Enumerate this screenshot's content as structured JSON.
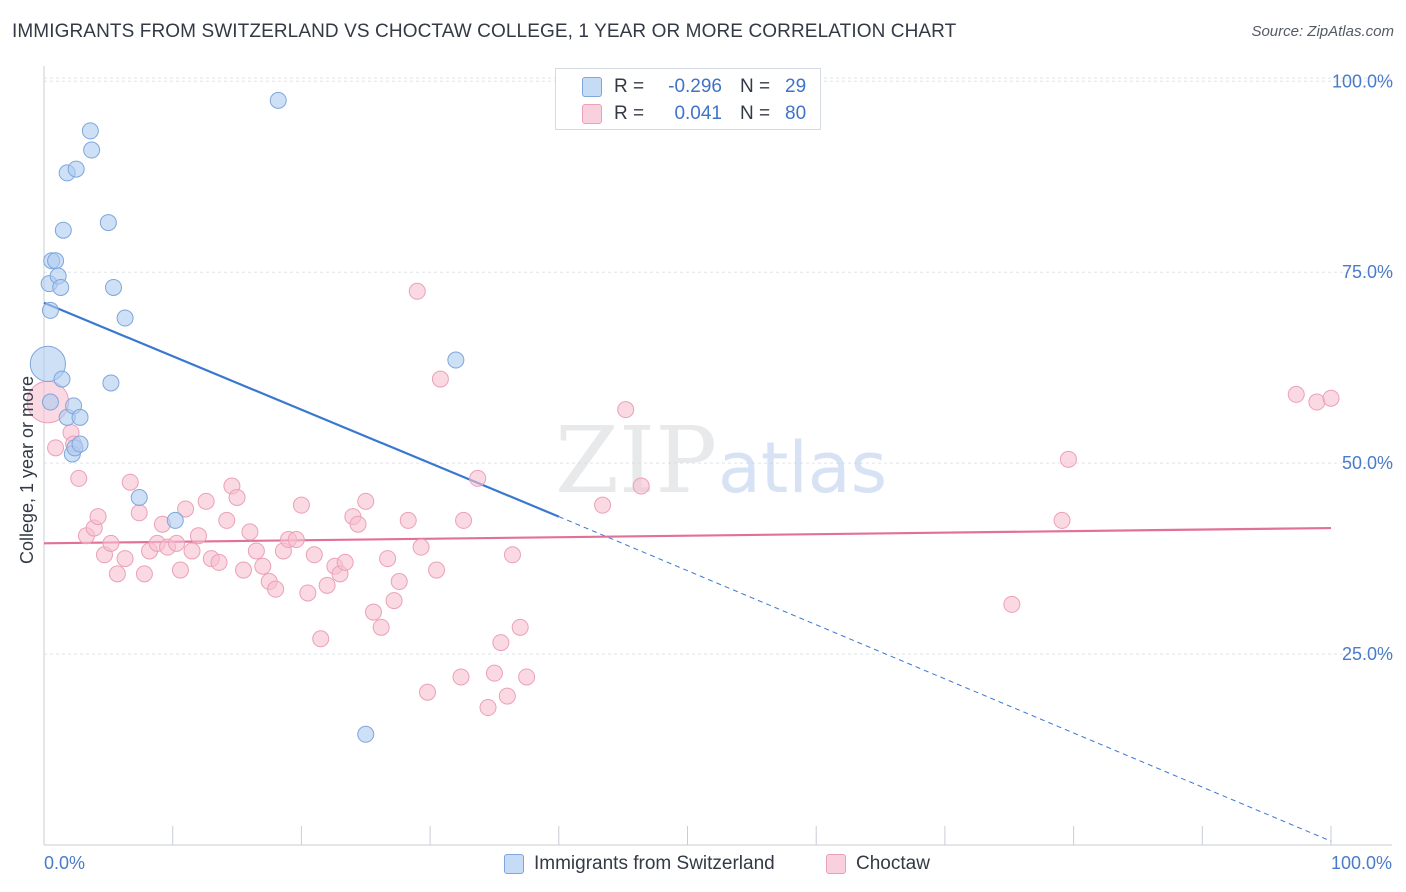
{
  "title": "IMMIGRANTS FROM SWITZERLAND VS CHOCTAW COLLEGE, 1 YEAR OR MORE CORRELATION CHART",
  "source": "Source: ZipAtlas.com",
  "watermark": {
    "part1": "ZIP",
    "part2": "atlas"
  },
  "colors": {
    "blue_fill": "#aecbf0",
    "blue_stroke": "#7ea6dc",
    "blue_line": "#3a78d0",
    "pink_fill": "#f6bfd0",
    "pink_stroke": "#eba0b9",
    "pink_line": "#e2719a",
    "axis_text": "#4a7bc8",
    "grid": "#dfe3ea"
  },
  "legend_stats": [
    {
      "r_label": "R =",
      "r_value": "-0.296",
      "n_label": "N =",
      "n_value": "29",
      "color": "blue"
    },
    {
      "r_label": "R =",
      "r_value": "0.041",
      "n_label": "N =",
      "n_value": "80",
      "color": "pink"
    }
  ],
  "bottom_legend": [
    "Immigrants from Switzerland",
    "Choctaw"
  ],
  "chart_data": {
    "type": "scatter",
    "title": "IMMIGRANTS FROM SWITZERLAND VS CHOCTAW COLLEGE, 1 YEAR OR MORE CORRELATION CHART",
    "xlabel": "",
    "ylabel": "College, 1 year or more",
    "xlim": [
      0,
      100
    ],
    "ylim": [
      0,
      102
    ],
    "x_tick_labels": [
      "0.0%",
      "100.0%"
    ],
    "y_ticks": [
      25,
      50,
      75,
      100
    ],
    "y_tick_labels": [
      "25.0%",
      "50.0%",
      "75.0%",
      "100.0%"
    ],
    "grid": true,
    "series": [
      {
        "name": "Immigrants from Switzerland",
        "color": "blue",
        "points": [
          [
            0.3,
            63.0,
            2.2
          ],
          [
            0.5,
            58.0,
            1
          ],
          [
            0.4,
            73.5,
            1
          ],
          [
            0.5,
            70.0,
            1
          ],
          [
            0.6,
            76.5,
            1
          ],
          [
            0.9,
            76.5,
            1
          ],
          [
            1.1,
            74.5,
            1
          ],
          [
            1.3,
            73.0,
            1
          ],
          [
            1.4,
            61.0,
            1
          ],
          [
            1.5,
            80.5,
            1
          ],
          [
            1.8,
            88.0,
            1
          ],
          [
            1.8,
            56.0,
            1
          ],
          [
            2.2,
            51.2,
            1
          ],
          [
            2.3,
            57.5,
            1
          ],
          [
            2.4,
            52.0,
            1
          ],
          [
            2.5,
            88.5,
            1
          ],
          [
            2.8,
            56.0,
            1
          ],
          [
            2.8,
            52.5,
            1
          ],
          [
            3.6,
            93.5,
            1
          ],
          [
            3.7,
            91.0,
            1
          ],
          [
            5.0,
            81.5,
            1
          ],
          [
            5.2,
            60.5,
            1
          ],
          [
            5.4,
            73.0,
            1
          ],
          [
            6.3,
            69.0,
            1
          ],
          [
            7.4,
            45.5,
            1
          ],
          [
            10.2,
            42.5,
            1
          ],
          [
            18.2,
            97.5,
            1
          ],
          [
            25.0,
            14.5,
            1
          ],
          [
            32.0,
            63.5,
            1
          ]
        ]
      },
      {
        "name": "Choctaw",
        "color": "pink",
        "points": [
          [
            0.3,
            58.0,
            2.6
          ],
          [
            0.9,
            52.0,
            1
          ],
          [
            2.1,
            54.0,
            1
          ],
          [
            2.3,
            52.5,
            1
          ],
          [
            2.7,
            48.0,
            1
          ],
          [
            3.3,
            40.5,
            1
          ],
          [
            3.9,
            41.5,
            1
          ],
          [
            4.2,
            43.0,
            1
          ],
          [
            4.7,
            38.0,
            1
          ],
          [
            5.2,
            39.5,
            1
          ],
          [
            5.7,
            35.5,
            1
          ],
          [
            6.3,
            37.5,
            1
          ],
          [
            6.7,
            47.5,
            1
          ],
          [
            7.4,
            43.5,
            1
          ],
          [
            7.8,
            35.5,
            1
          ],
          [
            8.2,
            38.5,
            1
          ],
          [
            8.8,
            39.5,
            1
          ],
          [
            9.2,
            42.0,
            1
          ],
          [
            9.6,
            39.0,
            1
          ],
          [
            10.3,
            39.5,
            1
          ],
          [
            10.6,
            36.0,
            1
          ],
          [
            11.0,
            44.0,
            1
          ],
          [
            11.5,
            38.5,
            1
          ],
          [
            12.0,
            40.5,
            1
          ],
          [
            12.6,
            45.0,
            1
          ],
          [
            13.0,
            37.5,
            1
          ],
          [
            13.6,
            37.0,
            1
          ],
          [
            14.2,
            42.5,
            1
          ],
          [
            14.6,
            47.0,
            1
          ],
          [
            15.0,
            45.5,
            1
          ],
          [
            15.5,
            36.0,
            1
          ],
          [
            16.0,
            41.0,
            1
          ],
          [
            16.5,
            38.5,
            1
          ],
          [
            17.0,
            36.5,
            1
          ],
          [
            17.5,
            34.5,
            1
          ],
          [
            18.0,
            33.5,
            1
          ],
          [
            18.6,
            38.5,
            1
          ],
          [
            19.0,
            40.0,
            1
          ],
          [
            19.6,
            40.0,
            1
          ],
          [
            20.0,
            44.5,
            1
          ],
          [
            20.5,
            33.0,
            1
          ],
          [
            21.0,
            38.0,
            1
          ],
          [
            21.5,
            27.0,
            1
          ],
          [
            22.0,
            34.0,
            1
          ],
          [
            22.6,
            36.5,
            1
          ],
          [
            23.0,
            35.5,
            1
          ],
          [
            23.4,
            37.0,
            1
          ],
          [
            24.0,
            43.0,
            1
          ],
          [
            24.4,
            42.0,
            1
          ],
          [
            25.0,
            45.0,
            1
          ],
          [
            25.6,
            30.5,
            1
          ],
          [
            26.2,
            28.5,
            1
          ],
          [
            26.7,
            37.5,
            1
          ],
          [
            27.2,
            32.0,
            1
          ],
          [
            27.6,
            34.5,
            1
          ],
          [
            28.3,
            42.5,
            1
          ],
          [
            29.0,
            72.5,
            1
          ],
          [
            29.3,
            39.0,
            1
          ],
          [
            29.8,
            20.0,
            1
          ],
          [
            30.5,
            36.0,
            1
          ],
          [
            30.8,
            61.0,
            1
          ],
          [
            32.4,
            22.0,
            1
          ],
          [
            32.6,
            42.5,
            1
          ],
          [
            33.7,
            48.0,
            1
          ],
          [
            34.5,
            18.0,
            1
          ],
          [
            35.0,
            22.5,
            1
          ],
          [
            35.5,
            26.5,
            1
          ],
          [
            36.0,
            19.5,
            1
          ],
          [
            36.4,
            38.0,
            1
          ],
          [
            37.0,
            28.5,
            1
          ],
          [
            37.5,
            22.0,
            1
          ],
          [
            43.4,
            44.5,
            1
          ],
          [
            45.2,
            57.0,
            1
          ],
          [
            46.4,
            47.0,
            1
          ],
          [
            75.2,
            31.5,
            1
          ],
          [
            79.1,
            42.5,
            1
          ],
          [
            79.6,
            50.5,
            1
          ],
          [
            97.3,
            59.0,
            1
          ],
          [
            98.9,
            58.0,
            1
          ],
          [
            100.0,
            58.5,
            1
          ]
        ]
      }
    ],
    "trend_lines": [
      {
        "series": "Immigrants from Switzerland",
        "x0": 0,
        "y0": 71.0,
        "x1": 40,
        "y1": 43.0,
        "dashed_to_x": 100,
        "dashed_to_y": 0.5
      },
      {
        "series": "Choctaw",
        "x0": 0,
        "y0": 39.5,
        "x1": 100,
        "y1": 41.5
      }
    ]
  }
}
